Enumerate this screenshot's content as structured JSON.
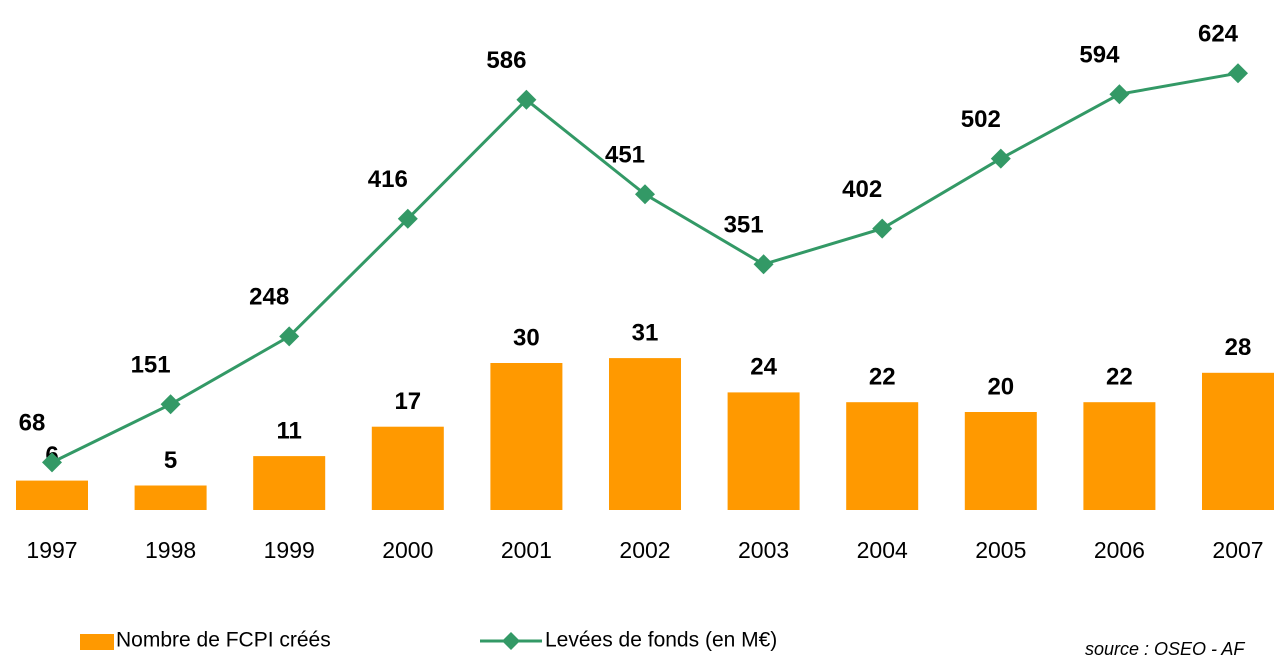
{
  "chart_data": {
    "type": "bar-line",
    "categories": [
      "1997",
      "1998",
      "1999",
      "2000",
      "2001",
      "2002",
      "2003",
      "2004",
      "2005",
      "2006",
      "2007"
    ],
    "series": [
      {
        "name": "Nombre de FCPI créés",
        "type": "bar",
        "color": "#ff9900",
        "values": [
          6,
          5,
          11,
          17,
          30,
          31,
          24,
          22,
          20,
          22,
          28
        ]
      },
      {
        "name": "Levées de fonds (en M€)",
        "type": "line",
        "axis": "y2",
        "color": "#339966",
        "values": [
          68,
          151,
          248,
          416,
          586,
          451,
          351,
          402,
          502,
          594,
          624
        ]
      }
    ],
    "ylim": [
      0,
      100
    ],
    "y2lim": [
      0,
      700
    ],
    "source": "source : OSEO - AF"
  }
}
